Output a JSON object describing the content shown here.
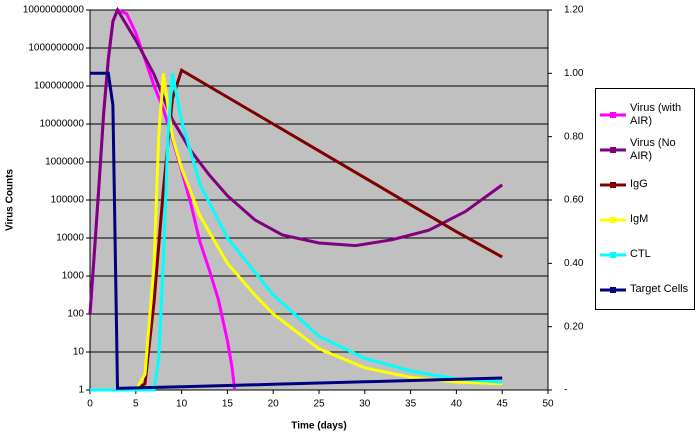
{
  "chart_data": {
    "type": "line",
    "xlabel": "Time (days)",
    "ylabel": "Virus Counts",
    "xlim": [
      0,
      50
    ],
    "xticks": [
      0,
      5,
      10,
      15,
      20,
      25,
      30,
      35,
      40,
      45,
      50
    ],
    "ylim": [
      1,
      10000000000
    ],
    "ylog": true,
    "yticks": [
      1,
      10,
      100,
      1000,
      10000,
      100000,
      1000000,
      10000000,
      100000000,
      1000000000,
      10000000000
    ],
    "y2lim": [
      0,
      1.2
    ],
    "y2ticks": [
      {
        "value": 0,
        "label": "-"
      },
      {
        "value": 0.2,
        "label": "0.20"
      },
      {
        "value": 0.4,
        "label": "0.40"
      },
      {
        "value": 0.6,
        "label": "0.60"
      },
      {
        "value": 0.8,
        "label": "0.80"
      },
      {
        "value": 1.0,
        "label": "1.00"
      },
      {
        "value": 1.2,
        "label": "1.20"
      }
    ],
    "grid": true,
    "plot_background": "#c0c0c0",
    "legend": "right",
    "series": [
      {
        "name": "Virus (with AIR)",
        "color": "#ff00ff",
        "x": [
          0,
          0.5,
          1,
          1.5,
          2,
          2.5,
          3,
          4,
          5,
          6,
          7,
          8,
          9,
          10,
          11,
          12,
          13,
          14,
          15,
          15.5,
          15.8
        ],
        "values": [
          100,
          5000,
          300000,
          20000000,
          500000000,
          5000000000,
          10000000000,
          8000000000,
          2500000000,
          500000000,
          100000000,
          25000000,
          4000000,
          600000,
          80000,
          8000,
          1500,
          250,
          20,
          4,
          1
        ]
      },
      {
        "name": "Virus (No AIR)",
        "color": "#800080",
        "x": [
          0,
          0.5,
          1,
          1.5,
          2,
          2.5,
          3,
          5,
          7,
          9,
          11,
          13,
          15,
          18,
          21,
          25,
          29,
          33,
          37,
          41,
          45
        ],
        "values": [
          100,
          5000,
          300000,
          20000000,
          500000000,
          5000000000,
          10000000000,
          1600000000,
          200000000,
          13000000,
          2000000,
          460000,
          130000,
          30000,
          12000,
          7400,
          6300,
          9000,
          16000,
          50000,
          250000
        ]
      },
      {
        "name": "IgG",
        "color": "#800000",
        "axis": "y2",
        "x": [
          0,
          5,
          6,
          7,
          8,
          9,
          10,
          20,
          30,
          40,
          45
        ],
        "values": [
          0,
          0,
          0.02,
          0.28,
          0.63,
          0.92,
          1.01,
          0.84,
          0.67,
          0.5,
          0.42
        ]
      },
      {
        "name": "IgM",
        "color": "#ffff00",
        "axis": "y2",
        "x": [
          0,
          5,
          6,
          7,
          7.5,
          8,
          9,
          10,
          12,
          15,
          18,
          20,
          25,
          30,
          35,
          40,
          45
        ],
        "values": [
          0,
          0,
          0.05,
          0.4,
          0.8,
          1.0,
          0.8,
          0.7,
          0.55,
          0.4,
          0.3,
          0.24,
          0.13,
          0.07,
          0.04,
          0.025,
          0.02
        ]
      },
      {
        "name": "CTL",
        "color": "#00ffff",
        "axis": "y2",
        "x": [
          0,
          7,
          7.5,
          8,
          8.5,
          9,
          10,
          12,
          15,
          20,
          25,
          30,
          35,
          40,
          45
        ],
        "values": [
          0,
          0,
          0.1,
          0.4,
          0.8,
          1.0,
          0.85,
          0.65,
          0.48,
          0.3,
          0.17,
          0.1,
          0.06,
          0.035,
          0.025
        ]
      },
      {
        "name": "Target Cells",
        "color": "#000080",
        "axis": "y2",
        "x": [
          0,
          2,
          2.5,
          3,
          10,
          20,
          30,
          45
        ],
        "values": [
          1.0,
          1.0,
          0.9,
          0.005,
          0.01,
          0.018,
          0.026,
          0.038
        ]
      }
    ]
  }
}
